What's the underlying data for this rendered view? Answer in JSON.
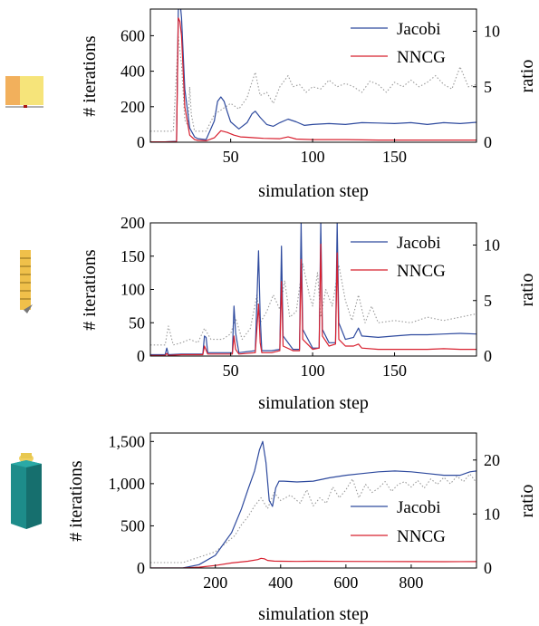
{
  "chart_data": [
    {
      "type": "line",
      "icon": "yellow-box-icon",
      "xlabel": "simulation step",
      "ylabel": "# iterations",
      "y2label": "ratio",
      "xlim": [
        1,
        200
      ],
      "ylim": [
        0,
        750
      ],
      "y2lim": [
        0,
        12
      ],
      "xticks": [
        50,
        100,
        150
      ],
      "yticks": [
        0,
        200,
        400,
        600
      ],
      "y2ticks": [
        0,
        5,
        10
      ],
      "yticklabels": [
        "0",
        "200",
        "400",
        "600"
      ],
      "legend_position": "top-right",
      "grid": false,
      "series": [
        {
          "name": "Jacobi",
          "axis": "left",
          "color": "#2e4a9e",
          "style": "solid",
          "x": [
            1,
            10,
            17,
            18,
            19,
            20,
            22,
            25,
            28,
            30,
            35,
            40,
            42,
            44,
            46,
            48,
            50,
            55,
            60,
            63,
            65,
            68,
            72,
            76,
            80,
            85,
            90,
            95,
            100,
            110,
            120,
            130,
            140,
            150,
            160,
            170,
            180,
            190,
            200
          ],
          "y": [
            2,
            2,
            5,
            740,
            800,
            700,
            300,
            80,
            30,
            20,
            15,
            120,
            230,
            255,
            230,
            170,
            115,
            75,
            110,
            160,
            175,
            140,
            100,
            90,
            110,
            130,
            115,
            95,
            100,
            105,
            100,
            110,
            108,
            105,
            110,
            100,
            110,
            105,
            112
          ]
        },
        {
          "name": "NNCG",
          "axis": "left",
          "color": "#d8202f",
          "style": "solid",
          "x": [
            1,
            10,
            17,
            18,
            19,
            20,
            22,
            25,
            28,
            30,
            35,
            40,
            44,
            48,
            52,
            56,
            60,
            65,
            70,
            80,
            85,
            90,
            100,
            120,
            140,
            160,
            180,
            200
          ],
          "y": [
            2,
            2,
            3,
            700,
            680,
            600,
            200,
            40,
            15,
            10,
            8,
            25,
            65,
            55,
            40,
            30,
            28,
            25,
            22,
            20,
            30,
            18,
            15,
            15,
            12,
            12,
            12,
            12
          ]
        },
        {
          "axis": "right",
          "color": "#999999",
          "style": "dotted",
          "x": [
            1,
            15,
            18,
            20,
            22,
            24,
            25,
            26,
            28,
            30,
            35,
            40,
            45,
            50,
            55,
            60,
            62,
            65,
            68,
            72,
            76,
            80,
            85,
            88,
            92,
            96,
            100,
            105,
            110,
            115,
            120,
            125,
            130,
            135,
            140,
            145,
            150,
            155,
            160,
            165,
            170,
            175,
            180,
            185,
            190,
            195,
            200
          ],
          "y": [
            1.0,
            1.0,
            9.5,
            7.0,
            2.0,
            1.5,
            5.0,
            2.5,
            1.0,
            1.0,
            1.0,
            2.5,
            3.0,
            3.5,
            3.0,
            4.0,
            5.0,
            6.3,
            4.2,
            4.5,
            3.5,
            5.0,
            6.0,
            5.0,
            5.2,
            4.5,
            5.0,
            4.8,
            5.6,
            5.0,
            5.3,
            5.0,
            4.5,
            5.5,
            5.2,
            4.5,
            5.4,
            5.0,
            5.6,
            5.0,
            5.4,
            6.0,
            5.2,
            4.8,
            6.8,
            5.0,
            5.2
          ]
        }
      ]
    },
    {
      "type": "line",
      "icon": "ruler-stack-icon",
      "xlabel": "simulation step",
      "ylabel": "# iterations",
      "y2label": "ratio",
      "xlim": [
        1,
        200
      ],
      "ylim": [
        0,
        200
      ],
      "y2lim": [
        0,
        12
      ],
      "xticks": [
        50,
        100,
        150
      ],
      "yticks": [
        0,
        50,
        100,
        150,
        200
      ],
      "y2ticks": [
        0,
        5,
        10
      ],
      "yticklabels": [
        "0",
        "50",
        "100",
        "150",
        "200"
      ],
      "legend_position": "top-right",
      "grid": false,
      "series": [
        {
          "name": "Jacobi",
          "axis": "left",
          "color": "#2e4a9e",
          "style": "solid",
          "x": [
            1,
            10,
            11,
            12,
            20,
            33,
            34,
            35,
            36,
            45,
            51,
            52,
            53,
            55,
            65,
            67,
            68,
            69,
            75,
            80,
            81,
            82,
            88,
            92,
            93,
            94,
            100,
            104,
            105,
            106,
            110,
            114,
            115,
            116,
            120,
            125,
            128,
            130,
            140,
            150,
            160,
            170,
            180,
            190,
            200
          ],
          "y": [
            2,
            2,
            12,
            2,
            3,
            3,
            30,
            28,
            5,
            5,
            5,
            75,
            35,
            5,
            8,
            158,
            60,
            8,
            8,
            10,
            165,
            30,
            10,
            10,
            200,
            40,
            12,
            12,
            200,
            40,
            20,
            20,
            200,
            50,
            25,
            28,
            42,
            30,
            28,
            30,
            32,
            32,
            33,
            34,
            33
          ]
        },
        {
          "name": "NNCG",
          "axis": "left",
          "color": "#d8202f",
          "style": "solid",
          "x": [
            1,
            10,
            11,
            12,
            20,
            33,
            34,
            36,
            45,
            51,
            52,
            53,
            55,
            65,
            67,
            68,
            69,
            75,
            80,
            81,
            82,
            88,
            92,
            93,
            94,
            100,
            104,
            105,
            106,
            110,
            114,
            115,
            116,
            120,
            125,
            128,
            130,
            140,
            150,
            160,
            170,
            180,
            190,
            200
          ],
          "y": [
            1,
            1,
            4,
            1,
            2,
            2,
            15,
            3,
            3,
            3,
            30,
            10,
            3,
            5,
            78,
            20,
            5,
            5,
            8,
            112,
            15,
            8,
            8,
            145,
            25,
            10,
            12,
            168,
            30,
            15,
            18,
            155,
            25,
            15,
            15,
            18,
            12,
            10,
            10,
            10,
            10,
            11,
            10,
            10
          ]
        },
        {
          "axis": "right",
          "color": "#999999",
          "style": "dotted",
          "x": [
            1,
            10,
            12,
            15,
            20,
            25,
            30,
            34,
            38,
            45,
            50,
            53,
            57,
            62,
            66,
            68,
            72,
            76,
            80,
            83,
            86,
            90,
            94,
            98,
            100,
            103,
            105,
            108,
            112,
            116,
            120,
            124,
            128,
            132,
            136,
            140,
            150,
            160,
            170,
            180,
            190,
            200
          ],
          "y": [
            1.0,
            1.0,
            2.7,
            1.0,
            1.2,
            1.5,
            1.2,
            2.5,
            1.5,
            1.5,
            2.0,
            3.4,
            1.5,
            2.5,
            5.5,
            3.0,
            4.0,
            5.5,
            4.2,
            6.8,
            3.5,
            4.0,
            8.3,
            5.5,
            4.5,
            7.5,
            3.5,
            6.0,
            4.5,
            8.2,
            5.0,
            3.2,
            5.5,
            3.0,
            4.5,
            3.0,
            3.2,
            3.0,
            3.5,
            3.2,
            3.5,
            3.8
          ]
        }
      ]
    },
    {
      "type": "line",
      "icon": "teal-tower-icon",
      "xlabel": "simulation step",
      "ylabel": "# iterations",
      "y2label": "ratio",
      "xlim": [
        1,
        1000
      ],
      "ylim": [
        0,
        1600
      ],
      "y2lim": [
        0,
        25
      ],
      "xticks": [
        200,
        400,
        600,
        800
      ],
      "yticks": [
        0,
        500,
        1000,
        1500
      ],
      "y2ticks": [
        0,
        10,
        20
      ],
      "yticklabels": [
        "0",
        "500",
        "1,000",
        "1,500"
      ],
      "legend_position": "center-right",
      "grid": false,
      "series": [
        {
          "name": "Jacobi",
          "axis": "left",
          "color": "#2e4a9e",
          "style": "solid",
          "x": [
            1,
            100,
            150,
            200,
            250,
            280,
            300,
            320,
            335,
            345,
            355,
            365,
            375,
            385,
            395,
            410,
            450,
            500,
            550,
            600,
            650,
            700,
            750,
            800,
            850,
            900,
            950,
            980,
            1000
          ],
          "y": [
            0,
            0,
            40,
            150,
            420,
            700,
            930,
            1150,
            1400,
            1500,
            1250,
            800,
            730,
            950,
            1030,
            1030,
            1020,
            1030,
            1070,
            1100,
            1120,
            1140,
            1150,
            1140,
            1120,
            1100,
            1100,
            1140,
            1150
          ]
        },
        {
          "name": "NNCG",
          "axis": "left",
          "color": "#d8202f",
          "style": "solid",
          "x": [
            1,
            100,
            150,
            200,
            250,
            300,
            330,
            340,
            350,
            360,
            380,
            400,
            450,
            500,
            600,
            700,
            800,
            900,
            1000
          ],
          "y": [
            0,
            0,
            10,
            30,
            60,
            80,
            100,
            115,
            110,
            90,
            82,
            80,
            78,
            80,
            78,
            77,
            76,
            75,
            76
          ]
        },
        {
          "axis": "right",
          "color": "#999999",
          "style": "dotted",
          "x": [
            1,
            100,
            150,
            200,
            230,
            260,
            280,
            300,
            320,
            340,
            360,
            380,
            400,
            430,
            460,
            480,
            500,
            520,
            540,
            560,
            580,
            600,
            620,
            640,
            660,
            680,
            700,
            720,
            740,
            760,
            780,
            800,
            820,
            840,
            860,
            880,
            900,
            920,
            940,
            960,
            980,
            1000
          ],
          "y": [
            1.0,
            1.0,
            2.0,
            3.0,
            4.5,
            6.0,
            8.0,
            9.5,
            11.5,
            13.0,
            11.0,
            14.0,
            12.5,
            13.5,
            12.0,
            14.5,
            11.5,
            13.0,
            12.0,
            15.0,
            13.0,
            14.5,
            16.5,
            13.0,
            15.5,
            14.0,
            14.8,
            16.0,
            14.2,
            15.5,
            16.0,
            15.0,
            16.2,
            14.8,
            16.5,
            15.5,
            16.8,
            15.6,
            17.0,
            16.0,
            17.4,
            15.8
          ]
        }
      ]
    }
  ]
}
